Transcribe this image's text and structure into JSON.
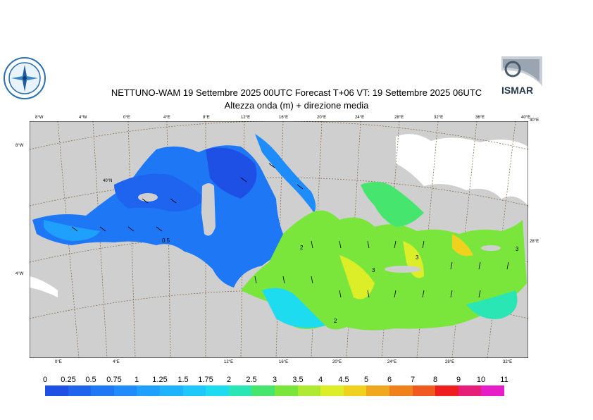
{
  "title_line1": "NETTUNO-WAM  19 Settembre 2025 00UTC Forecast T+06 VT: 19 Settembre 2025 06UTC",
  "title_line2": "Altezza onda (m) + direzione media",
  "logo_right_text": "ISMAR",
  "map": {
    "land_color": "#cfcfcf",
    "snow_color": "#ffffff",
    "graticule_color": "#8b6b4a",
    "contour_labels": [
      "0.5",
      "2",
      "3",
      "2",
      "3",
      "3"
    ],
    "top_lon_labels": [
      "8°W",
      "4°W",
      "0°E",
      "4°E",
      "8°E",
      "12°E",
      "16°E",
      "20°E",
      "24°E",
      "28°E",
      "32°E",
      "36°E",
      "40°E"
    ],
    "bottom_lon_labels": [
      "0°E",
      "4°E",
      "12°E",
      "16°E",
      "20°E",
      "24°E",
      "28°E",
      "32°E"
    ],
    "lat_labels": [
      "8°W",
      "4°W",
      "40°N"
    ],
    "right_labels": [
      "30°E",
      "28°E"
    ]
  },
  "legend": {
    "labels": [
      "0",
      "0.25",
      "0.5",
      "0.75",
      "1",
      "1.25",
      "1.5",
      "1.75",
      "2",
      "2.5",
      "3",
      "3.5",
      "4",
      "4.5",
      "5",
      "6",
      "7",
      "8",
      "9",
      "10",
      "11"
    ],
    "colors": [
      "#1e50e6",
      "#1e64ee",
      "#1e78f6",
      "#1e8cfa",
      "#1ea0fc",
      "#1eb4fc",
      "#1ec8fa",
      "#1edcf0",
      "#2ae6b4",
      "#46e66e",
      "#7ae63c",
      "#aeea32",
      "#dcee28",
      "#f0d21e",
      "#f0a81e",
      "#f0821e",
      "#f05a1e",
      "#ee1e1e",
      "#e61e7a",
      "#e61ec8"
    ]
  }
}
